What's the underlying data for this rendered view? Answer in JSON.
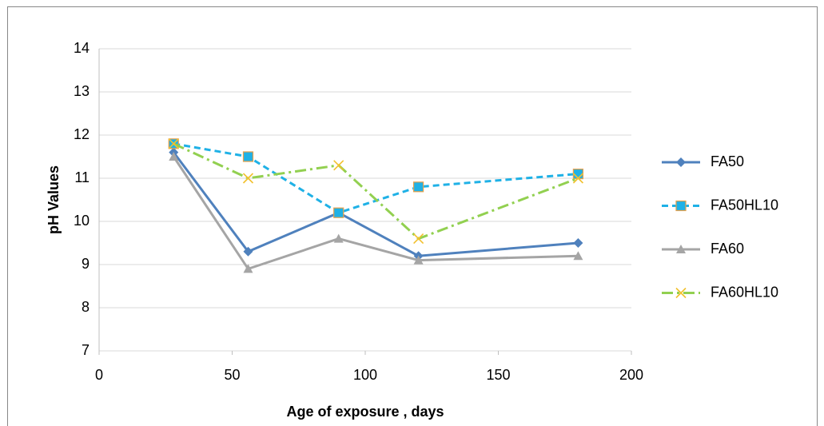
{
  "chart_data": {
    "type": "line",
    "x_label": "Age of exposure , days",
    "y_label": "pH Values",
    "x": [
      28,
      56,
      90,
      120,
      180
    ],
    "series": [
      {
        "name": "FA50",
        "color": "#4f81bd",
        "dash": "solid",
        "marker": "diamond",
        "values": [
          11.6,
          9.3,
          10.2,
          9.2,
          9.5
        ]
      },
      {
        "name": "FA50HL10",
        "color": "#1fb1e6",
        "dash": "dash",
        "marker": "square",
        "values": [
          11.8,
          11.5,
          10.2,
          10.8,
          11.1
        ]
      },
      {
        "name": "FA60",
        "color": "#a5a5a5",
        "dash": "solid",
        "marker": "triangle",
        "values": [
          11.5,
          8.9,
          9.6,
          9.1,
          9.2
        ]
      },
      {
        "name": "FA60HL10",
        "color": "#92d050",
        "dash": "dashdot",
        "marker": "x",
        "values": [
          11.8,
          11.0,
          11.3,
          9.6,
          11.0
        ]
      }
    ],
    "xlim": [
      0,
      200
    ],
    "xticks": [
      0,
      50,
      100,
      150,
      200
    ],
    "ylim": [
      7,
      14
    ],
    "yticks": [
      7,
      8,
      9,
      10,
      11,
      12,
      13,
      14
    ],
    "grid": true,
    "legend": "right"
  }
}
